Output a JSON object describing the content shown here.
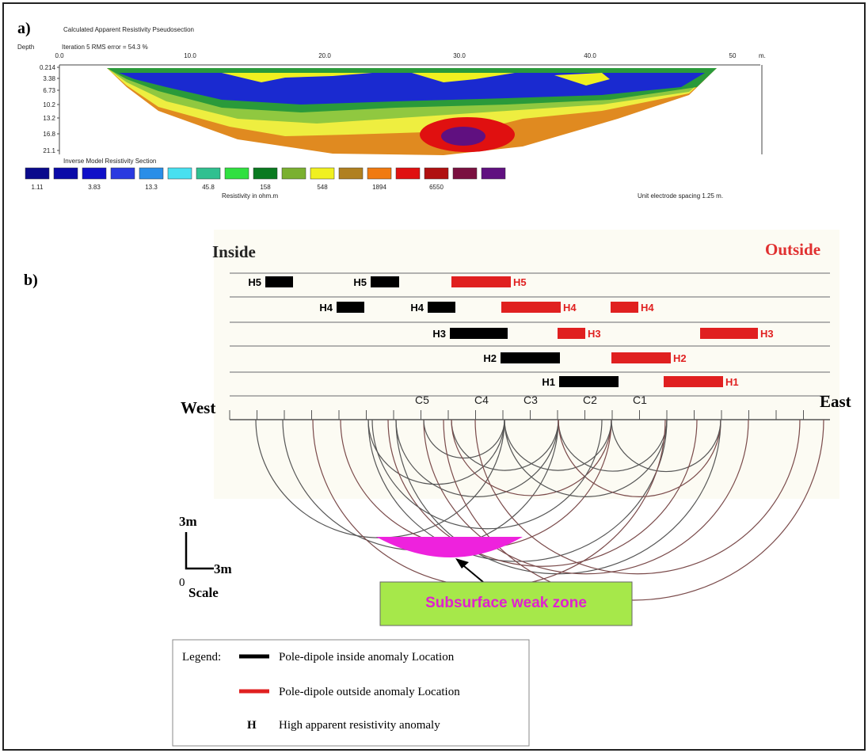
{
  "panel_a": {
    "label": "a)",
    "title": "Calculated Apparent Resistivity Pseudosection",
    "depth_label": "Depth",
    "iteration": "Iteration 5 RMS error = 54.3 %",
    "x_labels": [
      "0.0",
      "10.0",
      "20.0",
      "30.0",
      "40.0",
      "50"
    ],
    "x_unit": "m.",
    "depth_labels": [
      "0.214",
      "3.38",
      "6.73",
      "10.2",
      "13.2",
      "16.8",
      "21.1"
    ],
    "section_title": "Inverse Model Resistivity Section",
    "swatches": [
      "#0a0a8c",
      "#0a0aa8",
      "#1010c8",
      "#2a3ae0",
      "#2a8ee8",
      "#48e0f0",
      "#30c090",
      "#30e040",
      "#0a7a20",
      "#7ab030",
      "#f0f020",
      "#b08020",
      "#f07a10",
      "#e01010",
      "#b01010",
      "#7a1040",
      "#601080"
    ],
    "scale_labels": [
      "1.11",
      "3.83",
      "13.3",
      "45.8",
      "158",
      "548",
      "1894",
      "6550"
    ],
    "scale_title": "Resistivity in ohm.m",
    "spacing_note": "Unit electrode spacing 1.25 m."
  },
  "panel_b": {
    "label": "b)",
    "inside": "Inside",
    "outside": "Outside",
    "west": "West",
    "east": "East",
    "electrodes": [
      "C5",
      "C4",
      "C3",
      "C2",
      "C1"
    ],
    "rows": [
      [
        {
          "label": "H5",
          "color": "#000000"
        },
        {
          "label": "H5",
          "color": "#000000"
        },
        {
          "label": "H5",
          "color": "#e02020"
        }
      ],
      [
        {
          "label": "H4",
          "color": "#000000"
        },
        {
          "label": "H4",
          "color": "#000000"
        },
        {
          "label": "H4",
          "color": "#e02020"
        },
        {
          "label": "H4",
          "color": "#e02020"
        }
      ],
      [
        {
          "label": "H3",
          "color": "#000000"
        },
        {
          "label": "H3",
          "color": "#e02020"
        },
        {
          "label": "H3",
          "color": "#e02020"
        }
      ],
      [
        {
          "label": "H2",
          "color": "#000000"
        },
        {
          "label": "H2",
          "color": "#e02020"
        }
      ],
      [
        {
          "label": "H1",
          "color": "#000000"
        },
        {
          "label": "H1",
          "color": "#e02020"
        }
      ]
    ],
    "scale": {
      "vertical": "3m",
      "horizontal": "3m",
      "origin": "0",
      "title": "Scale"
    },
    "weak_zone": "Subsurface weak zone",
    "legend": {
      "title": "Legend:",
      "inside": "Pole-dipole inside anomaly Location",
      "outside": "Pole-dipole outside anomaly Location",
      "h_symbol": "H",
      "h_text": "High apparent resistivity  anomaly"
    }
  }
}
